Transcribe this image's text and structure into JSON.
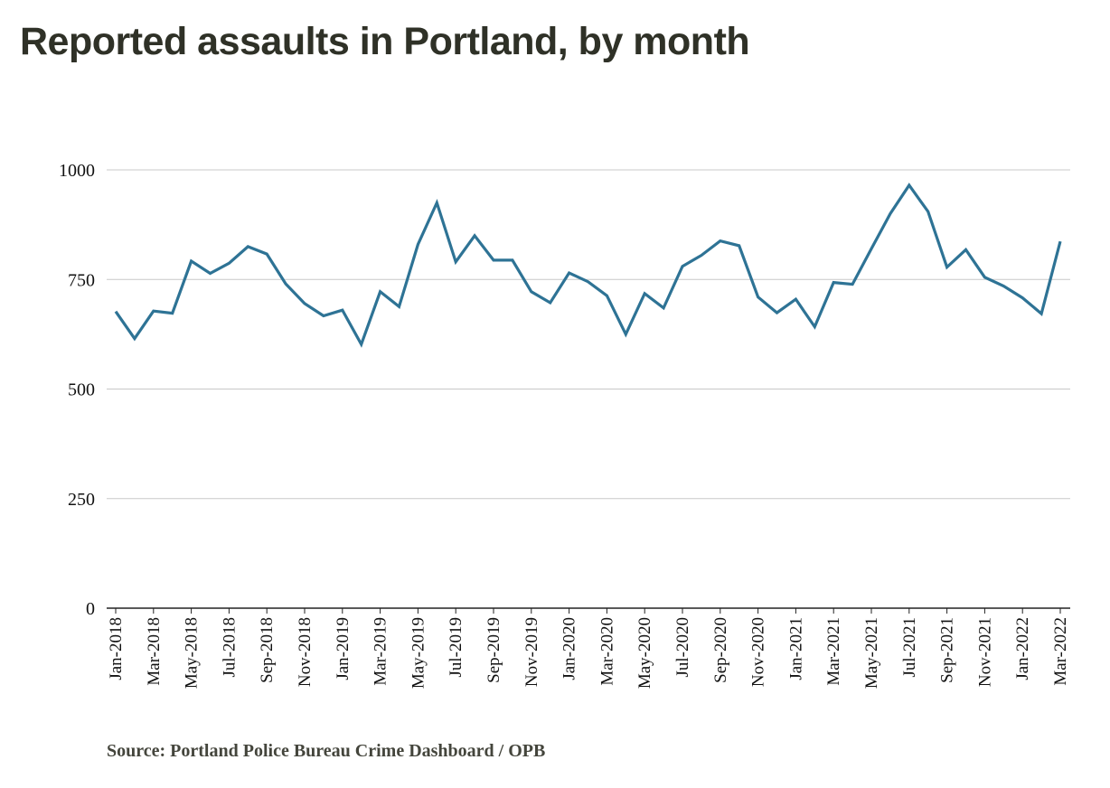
{
  "title": "Reported assaults in Portland, by month",
  "source": "Source: Portland Police Bureau Crime Dashboard / OPB",
  "colors": {
    "line": "#2e7395",
    "grid": "#c8c8c8",
    "axis": "#222222",
    "title": "#2f3127"
  },
  "chart_data": {
    "type": "line",
    "title": "Reported assaults in Portland, by month",
    "xlabel": "",
    "ylabel": "",
    "ylim": [
      0,
      1000
    ],
    "yticks": [
      0,
      250,
      500,
      750,
      1000
    ],
    "grid": true,
    "x": [
      "Jan-2018",
      "Feb-2018",
      "Mar-2018",
      "Apr-2018",
      "May-2018",
      "Jun-2018",
      "Jul-2018",
      "Aug-2018",
      "Sep-2018",
      "Oct-2018",
      "Nov-2018",
      "Dec-2018",
      "Jan-2019",
      "Feb-2019",
      "Mar-2019",
      "Apr-2019",
      "May-2019",
      "Jun-2019",
      "Jul-2019",
      "Aug-2019",
      "Sep-2019",
      "Oct-2019",
      "Nov-2019",
      "Dec-2019",
      "Jan-2020",
      "Feb-2020",
      "Mar-2020",
      "Apr-2020",
      "May-2020",
      "Jun-2020",
      "Jul-2020",
      "Aug-2020",
      "Sep-2020",
      "Oct-2020",
      "Nov-2020",
      "Dec-2020",
      "Jan-2021",
      "Feb-2021",
      "Mar-2021",
      "Apr-2021",
      "May-2021",
      "Jun-2021",
      "Jul-2021",
      "Aug-2021",
      "Sep-2021",
      "Oct-2021",
      "Nov-2021",
      "Dec-2021",
      "Jan-2022",
      "Feb-2022",
      "Mar-2022"
    ],
    "xtick_labels": [
      "Jan-2018",
      "Mar-2018",
      "May-2018",
      "Jul-2018",
      "Sep-2018",
      "Nov-2018",
      "Jan-2019",
      "Mar-2019",
      "May-2019",
      "Jul-2019",
      "Sep-2019",
      "Nov-2019",
      "Jan-2020",
      "Mar-2020",
      "May-2020",
      "Jul-2020",
      "Sep-2020",
      "Nov-2020",
      "Jan-2021",
      "Mar-2021",
      "May-2021",
      "Jul-2021",
      "Sep-2021",
      "Nov-2021",
      "Jan-2022",
      "Mar-2022"
    ],
    "series": [
      {
        "values": [
          677,
          615,
          678,
          673,
          792,
          764,
          787,
          825,
          808,
          740,
          695,
          667,
          680,
          602,
          722,
          688,
          830,
          925,
          790,
          850,
          794,
          794,
          722,
          697,
          765,
          745,
          713,
          625,
          718,
          685,
          780,
          805,
          838,
          827,
          710,
          674,
          705,
          642,
          743,
          739,
          820,
          900,
          965,
          905,
          778,
          818,
          755,
          735,
          708,
          672,
          837
        ]
      }
    ]
  }
}
